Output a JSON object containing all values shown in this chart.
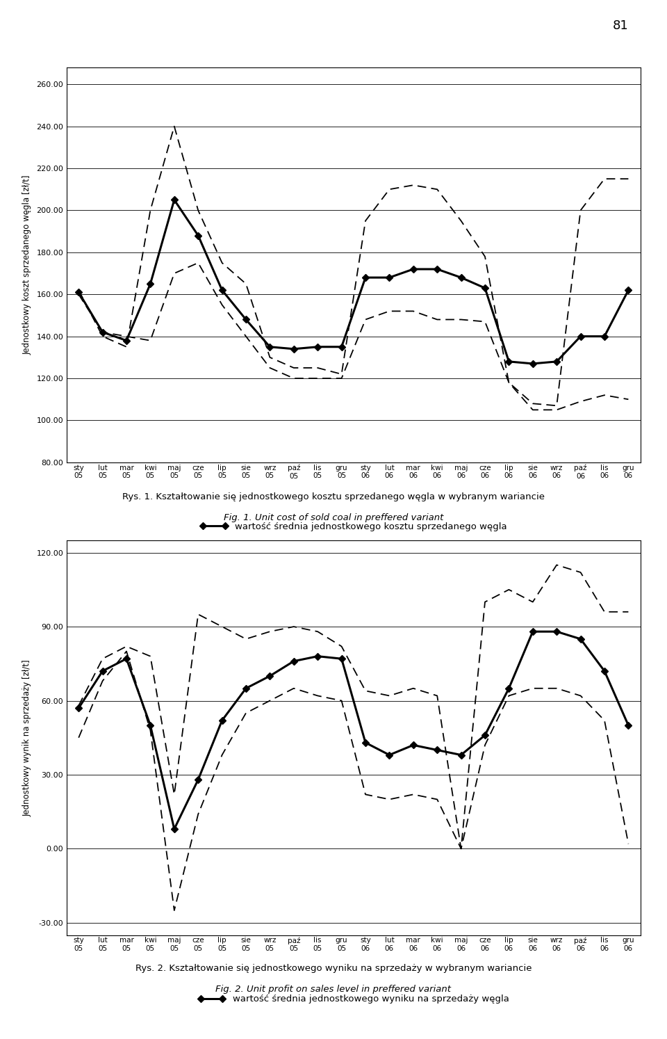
{
  "page_number": "81",
  "x_labels": [
    "sty\n05",
    "lut\n05",
    "mar\n05",
    "kwi\n05",
    "maj\n05",
    "cze\n05",
    "lip\n05",
    "sie\n05",
    "wrz\n05",
    "paź\n05",
    "lis\n05",
    "gru\n05",
    "sty\n06",
    "lut\n06",
    "mar\n06",
    "kwi\n06",
    "maj\n06",
    "cze\n06",
    "lip\n06",
    "sie\n06",
    "wrz\n06",
    "paź\n06",
    "lis\n06",
    "gru\n06"
  ],
  "chart1_ylabel": "Jednostkowy koszt sprzedanego węgla [zł/t]",
  "chart1_ylim": [
    80,
    268
  ],
  "chart1_yticks": [
    80,
    100,
    120,
    140,
    160,
    180,
    200,
    220,
    240,
    260
  ],
  "chart1_legend": "wartość średnia jednostkowego kosztu sprzedanego węgla",
  "chart1_solid": [
    161,
    142,
    138,
    165,
    205,
    188,
    162,
    148,
    135,
    134,
    135,
    135,
    168,
    168,
    172,
    172,
    168,
    163,
    128,
    127,
    128,
    140,
    140,
    162
  ],
  "chart1_dashed_upper": [
    162,
    140,
    135,
    200,
    240,
    200,
    175,
    165,
    130,
    125,
    125,
    122,
    195,
    210,
    212,
    210,
    195,
    178,
    118,
    108,
    107,
    200,
    215,
    215
  ],
  "chart1_dashed_lower": [
    160,
    142,
    140,
    138,
    170,
    175,
    155,
    140,
    125,
    120,
    120,
    120,
    148,
    152,
    152,
    148,
    148,
    147,
    118,
    105,
    105,
    109,
    112,
    110
  ],
  "chart2_ylabel": "Jednostkowy wynik na sprzedaży [zł/t]",
  "chart2_ylim": [
    -35,
    125
  ],
  "chart2_yticks": [
    -30,
    0,
    30,
    60,
    90,
    120
  ],
  "chart2_legend": "wartość średnia jednostkowego wyniku na sprzedaży węgla",
  "chart2_solid": [
    57,
    72,
    77,
    50,
    8,
    28,
    52,
    65,
    70,
    76,
    78,
    77,
    43,
    38,
    42,
    40,
    38,
    46,
    65,
    88,
    88,
    85,
    72,
    50
  ],
  "chart2_dashed_upper": [
    58,
    77,
    82,
    78,
    22,
    95,
    90,
    85,
    88,
    90,
    88,
    82,
    64,
    62,
    65,
    62,
    0,
    100,
    105,
    100,
    115,
    112,
    96,
    96
  ],
  "chart2_dashed_lower": [
    45,
    68,
    80,
    48,
    -25,
    14,
    38,
    55,
    60,
    65,
    62,
    60,
    22,
    20,
    22,
    20,
    0,
    42,
    62,
    65,
    65,
    62,
    52,
    2
  ],
  "caption1_pl": "Rys. 1. Kształtowanie się jednostkowego kosztu sprzedanego węgla w wybranym wariancie",
  "caption1_en": "Fig. 1. Unit cost of sold coal in preffered variant",
  "caption2_pl": "Rys. 2. Kształtowanie się jednostkowego wyniku na sprzedaży w wybranym wariancie",
  "caption2_en": "Fig. 2. Unit profit on sales level in preffered variant",
  "background_color": "#ffffff"
}
